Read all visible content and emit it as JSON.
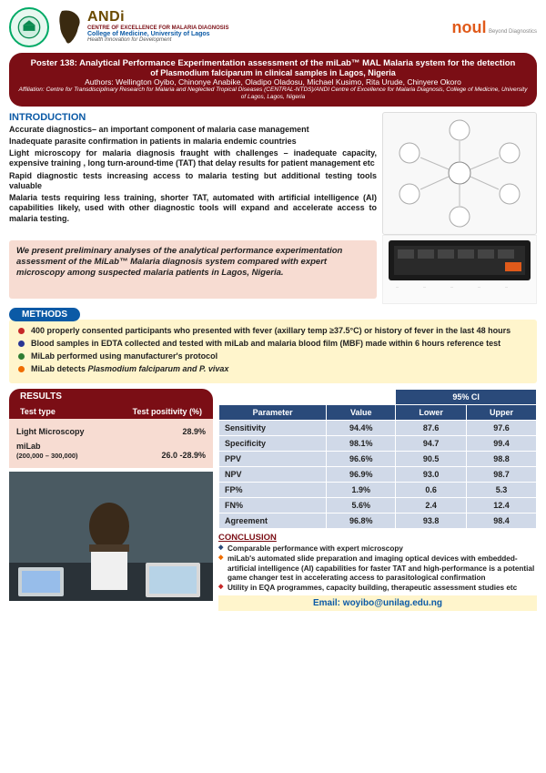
{
  "header": {
    "andi_brand": "ANDi",
    "andi_line1": "CENTRE OF EXCELLENCE FOR MALARIA DIAGNOSIS",
    "andi_line2": "College of Medicine, University of Lagos",
    "andi_line3": "Health Innovation for Development",
    "noul": "noul",
    "noul_sub": "Beyond Diagnostics"
  },
  "title": {
    "line1": "Poster 138: Analytical Performance Experimentation assessment of the miLab™ MAL Malaria system for the detection",
    "line2": "of Plasmodium falciparum in clinical samples in Lagos, Nigeria",
    "authors": "Authors: Wellington Oyibo, Chinonye Anabike, Oladipo Oladosu, Michael Kusimo, Rita Urude, Chinyere Okoro",
    "affil": "Affiliation: Centre for Transdisciplinary Research for Malaria and Neglected Tropical Diseases (CENTRAL-NTDS)/ANDI Centre of Excellence for Malaria Diagnosis, College of Medicine, University of Lagos, Lagos, Nigeria"
  },
  "intro": {
    "heading": "INTRODUCTION",
    "p1": "Accurate diagnostics– an important component of malaria case management",
    "p2": "Inadequate parasite confirmation in patients in malaria endemic countries",
    "p3": "Light microscopy for malaria diagnosis fraught with challenges – inadequate capacity, expensive training , long turn-around-time (TAT) that delay results for patient management etc",
    "p4": "Rapid diagnostic tests increasing access to malaria testing but additional testing tools valuable",
    "p5": "Malaria tests requiring less training, shorter TAT, automated with artificial intelligence (AI) capabilities likely, used with other diagnostic tools will expand and accelerate access to malaria testing."
  },
  "summary": "We present preliminary analyses of the analytical performance experimentation assessment of the MiLab™ Malaria diagnosis system compared with expert microscopy among suspected malaria patients in Lagos, Nigeria.",
  "methods": {
    "heading": "METHODS",
    "m1": "400 properly consented participants who presented with fever (axillary temp ≥37.5°C) or history of fever in the last 48 hours",
    "m2": "Blood samples in EDTA collected and tested with miLab and malaria blood film (MBF) made within 6 hours reference test",
    "m3": "MiLab performed using manufacturer's protocol",
    "m4_a": "MiLab detects ",
    "m4_b": "Plasmodium falciparum and P. vivax"
  },
  "results": {
    "heading": "RESULTS",
    "col1": "Test type",
    "col2": "Test positivity (%)",
    "rows": [
      {
        "type": "Light Microscopy",
        "pos": "28.9%",
        "note": ""
      },
      {
        "type": "miLab",
        "pos": "26.0 -28.9%",
        "note": "(200,000 – 300,000)"
      }
    ]
  },
  "stats": {
    "ci_label": "95% CI",
    "h_param": "Parameter",
    "h_value": "Value",
    "h_lower": "Lower",
    "h_upper": "Upper",
    "rows": [
      {
        "p": "Sensitivity",
        "v": "94.4%",
        "l": "87.6",
        "u": "97.6"
      },
      {
        "p": "Specificity",
        "v": "98.1%",
        "l": "94.7",
        "u": "99.4"
      },
      {
        "p": "PPV",
        "v": "96.6%",
        "l": "90.5",
        "u": "98.8"
      },
      {
        "p": "NPV",
        "v": "96.9%",
        "l": "93.0",
        "u": "98.7"
      },
      {
        "p": "FP%",
        "v": "1.9%",
        "l": "0.6",
        "u": "5.3"
      },
      {
        "p": "FN%",
        "v": "5.6%",
        "l": "2.4",
        "u": "12.4"
      },
      {
        "p": "Agreement",
        "v": "96.8%",
        "l": "93.8",
        "u": "98.4"
      }
    ]
  },
  "conclusion": {
    "heading": "CONCLUSION",
    "c1": "Comparable performance with expert microscopy",
    "c2": "miLab's automated slide preparation and imaging optical devices with embedded-artificial intelligence (AI) capabilities for faster TAT and high-performance is a potential game changer test in accelerating access to parasitological confirmation",
    "c3": "Utility in EQA programmes, capacity building, therapeutic assessment studies etc"
  },
  "email": "Email: woyibo@unilag.edu.ng",
  "colors": {
    "maroon": "#7b0e15",
    "blue": "#0b5aa6",
    "tableHeader": "#2a4a7a",
    "tableCell": "#d0d9e8",
    "peach": "#f7dcd2",
    "cream": "#fff5cc",
    "orange": "#e05a1a"
  }
}
